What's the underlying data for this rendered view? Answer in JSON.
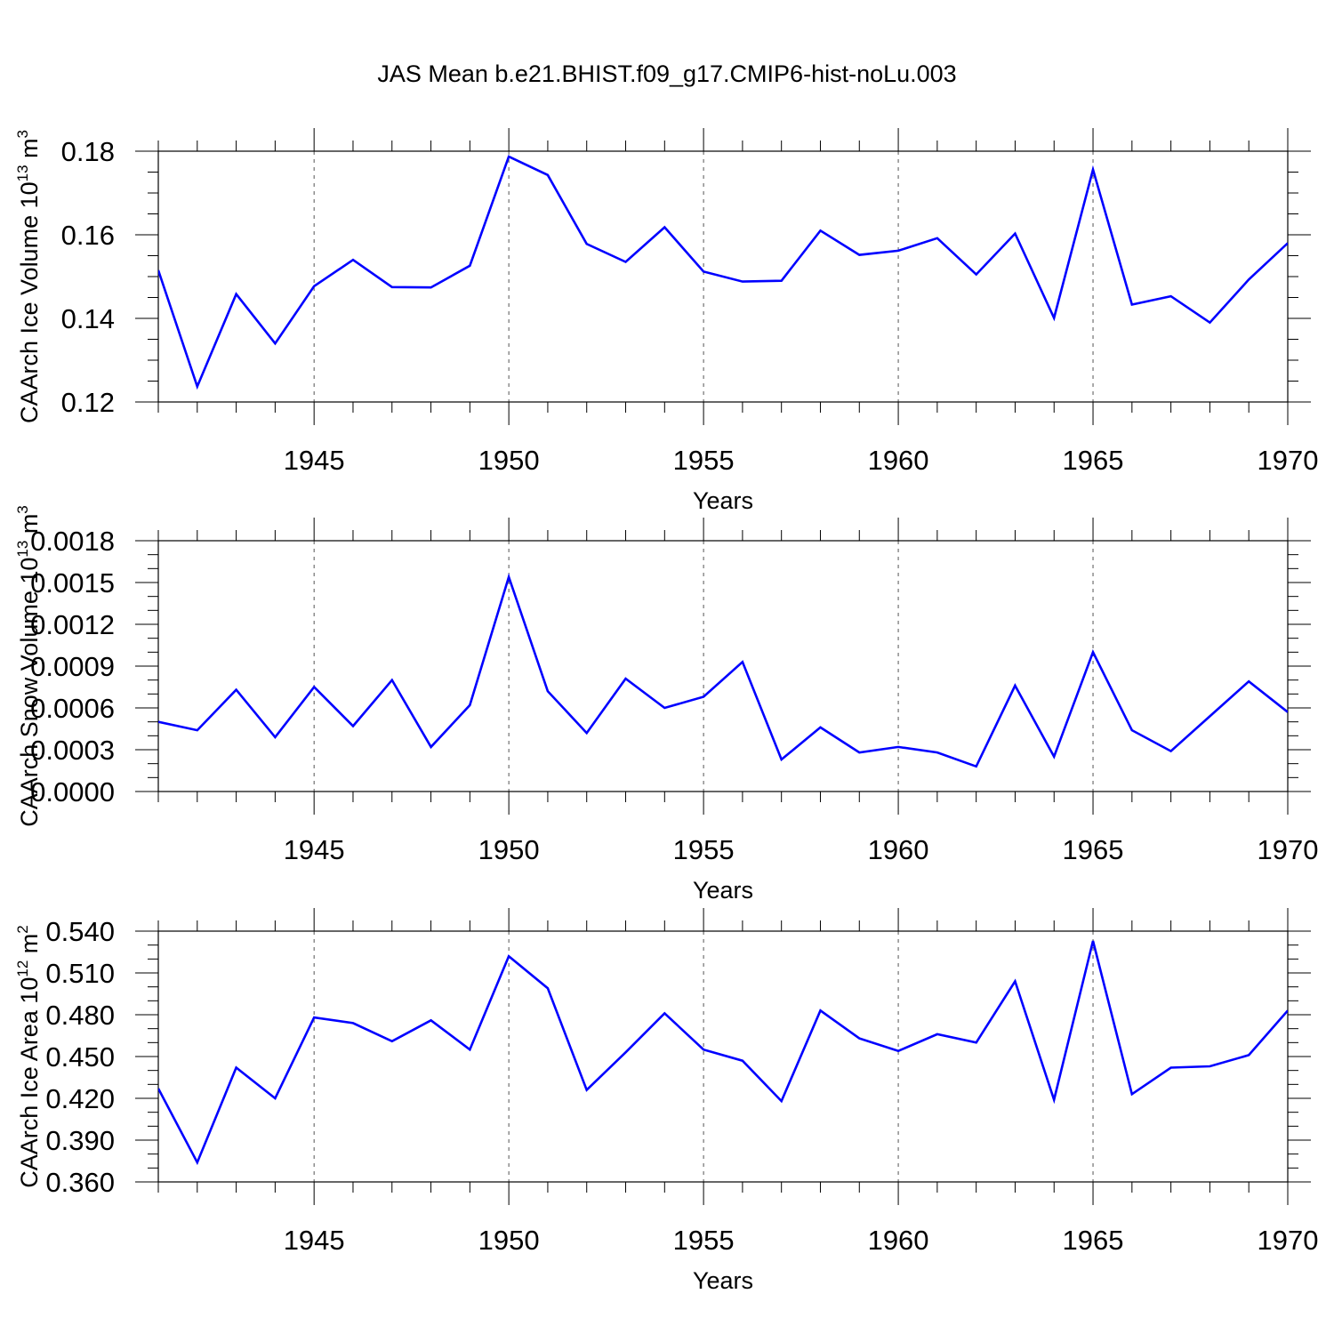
{
  "figure_title": "JAS Mean b.e21.BHIST.f09_g17.CMIP6-hist-noLu.003",
  "colors": {
    "line": "#0000ff",
    "axis": "#000000",
    "grid": "#555555",
    "background": "#ffffff"
  },
  "chart_data": [
    {
      "type": "line",
      "name": "ice-volume",
      "ylabel": "CAArch Ice Volume 10",
      "ylabel_exp": "13",
      "ylabel_unit": " m",
      "ylabel_unit_exp": "3",
      "xlabel": "Years",
      "xlim": [
        1941,
        1970
      ],
      "ylim": [
        0.12,
        0.18
      ],
      "yticks": [
        0.12,
        0.14,
        0.16,
        0.18
      ],
      "ytick_labels": [
        "0.12",
        "0.14",
        "0.16",
        "0.18"
      ],
      "yminor_step": 0.005,
      "xticks": [
        1945,
        1950,
        1955,
        1960,
        1965,
        1970
      ],
      "xtick_labels": [
        "1945",
        "1950",
        "1955",
        "1960",
        "1965",
        "1970"
      ],
      "grid_x": [
        1945,
        1950,
        1955,
        1960,
        1965
      ],
      "x": [
        1941,
        1942,
        1943,
        1944,
        1945,
        1946,
        1947,
        1948,
        1949,
        1950,
        1951,
        1952,
        1953,
        1954,
        1955,
        1956,
        1957,
        1958,
        1959,
        1960,
        1961,
        1962,
        1963,
        1964,
        1965,
        1966,
        1967,
        1968,
        1969,
        1970
      ],
      "values": [
        0.1515,
        0.1237,
        0.1458,
        0.134,
        0.1477,
        0.154,
        0.1475,
        0.1474,
        0.1526,
        0.1787,
        0.1743,
        0.1578,
        0.1535,
        0.1618,
        0.1512,
        0.1488,
        0.149,
        0.161,
        0.1552,
        0.1562,
        0.1592,
        0.1505,
        0.1603,
        0.1401,
        0.1756,
        0.1433,
        0.1453,
        0.139,
        0.1493,
        0.158
      ]
    },
    {
      "type": "line",
      "name": "snow-volume",
      "ylabel": "CAArch Snow Volume 10",
      "ylabel_exp": "13",
      "ylabel_unit": " m",
      "ylabel_unit_exp": "3",
      "xlabel": "Years",
      "xlim": [
        1941,
        1970
      ],
      "ylim": [
        0.0,
        0.0018
      ],
      "yticks": [
        0.0,
        0.0003,
        0.0006,
        0.0009,
        0.0012,
        0.0015,
        0.0018
      ],
      "ytick_labels": [
        "0.0000",
        "0.0003",
        "0.0006",
        "0.0009",
        "0.0012",
        "0.0015",
        "0.0018"
      ],
      "yminor_step": 0.0001,
      "xticks": [
        1945,
        1950,
        1955,
        1960,
        1965,
        1970
      ],
      "xtick_labels": [
        "1945",
        "1950",
        "1955",
        "1960",
        "1965",
        "1970"
      ],
      "grid_x": [
        1945,
        1950,
        1955,
        1960,
        1965
      ],
      "x": [
        1941,
        1942,
        1943,
        1944,
        1945,
        1946,
        1947,
        1948,
        1949,
        1950,
        1951,
        1952,
        1953,
        1954,
        1955,
        1956,
        1957,
        1958,
        1959,
        1960,
        1961,
        1962,
        1963,
        1964,
        1965,
        1966,
        1967,
        1968,
        1969,
        1970
      ],
      "values": [
        0.0005,
        0.00044,
        0.00073,
        0.00039,
        0.00075,
        0.00047,
        0.0008,
        0.00032,
        0.00062,
        0.00154,
        0.00072,
        0.00042,
        0.00081,
        0.0006,
        0.00068,
        0.00093,
        0.00023,
        0.00046,
        0.00028,
        0.00032,
        0.00028,
        0.00018,
        0.00076,
        0.00025,
        0.001,
        0.00044,
        0.00029,
        0.00054,
        0.00079,
        0.00057
      ]
    },
    {
      "type": "line",
      "name": "ice-area",
      "ylabel": "CAArch Ice Area 10",
      "ylabel_exp": "12",
      "ylabel_unit": " m",
      "ylabel_unit_exp": "2",
      "xlabel": "Years",
      "xlim": [
        1941,
        1970
      ],
      "ylim": [
        0.36,
        0.54
      ],
      "yticks": [
        0.36,
        0.39,
        0.42,
        0.45,
        0.48,
        0.51,
        0.54
      ],
      "ytick_labels": [
        "0.360",
        "0.390",
        "0.420",
        "0.450",
        "0.480",
        "0.510",
        "0.540"
      ],
      "yminor_step": 0.01,
      "xticks": [
        1945,
        1950,
        1955,
        1960,
        1965,
        1970
      ],
      "xtick_labels": [
        "1945",
        "1950",
        "1955",
        "1960",
        "1965",
        "1970"
      ],
      "grid_x": [
        1945,
        1950,
        1955,
        1960,
        1965
      ],
      "x": [
        1941,
        1942,
        1943,
        1944,
        1945,
        1946,
        1947,
        1948,
        1949,
        1950,
        1951,
        1952,
        1953,
        1954,
        1955,
        1956,
        1957,
        1958,
        1959,
        1960,
        1961,
        1962,
        1963,
        1964,
        1965,
        1966,
        1967,
        1968,
        1969,
        1970
      ],
      "values": [
        0.427,
        0.374,
        0.442,
        0.42,
        0.478,
        0.474,
        0.461,
        0.476,
        0.455,
        0.522,
        0.499,
        0.426,
        0.453,
        0.481,
        0.455,
        0.447,
        0.418,
        0.483,
        0.463,
        0.454,
        0.466,
        0.46,
        0.504,
        0.419,
        0.533,
        0.423,
        0.442,
        0.443,
        0.451,
        0.483
      ]
    }
  ]
}
